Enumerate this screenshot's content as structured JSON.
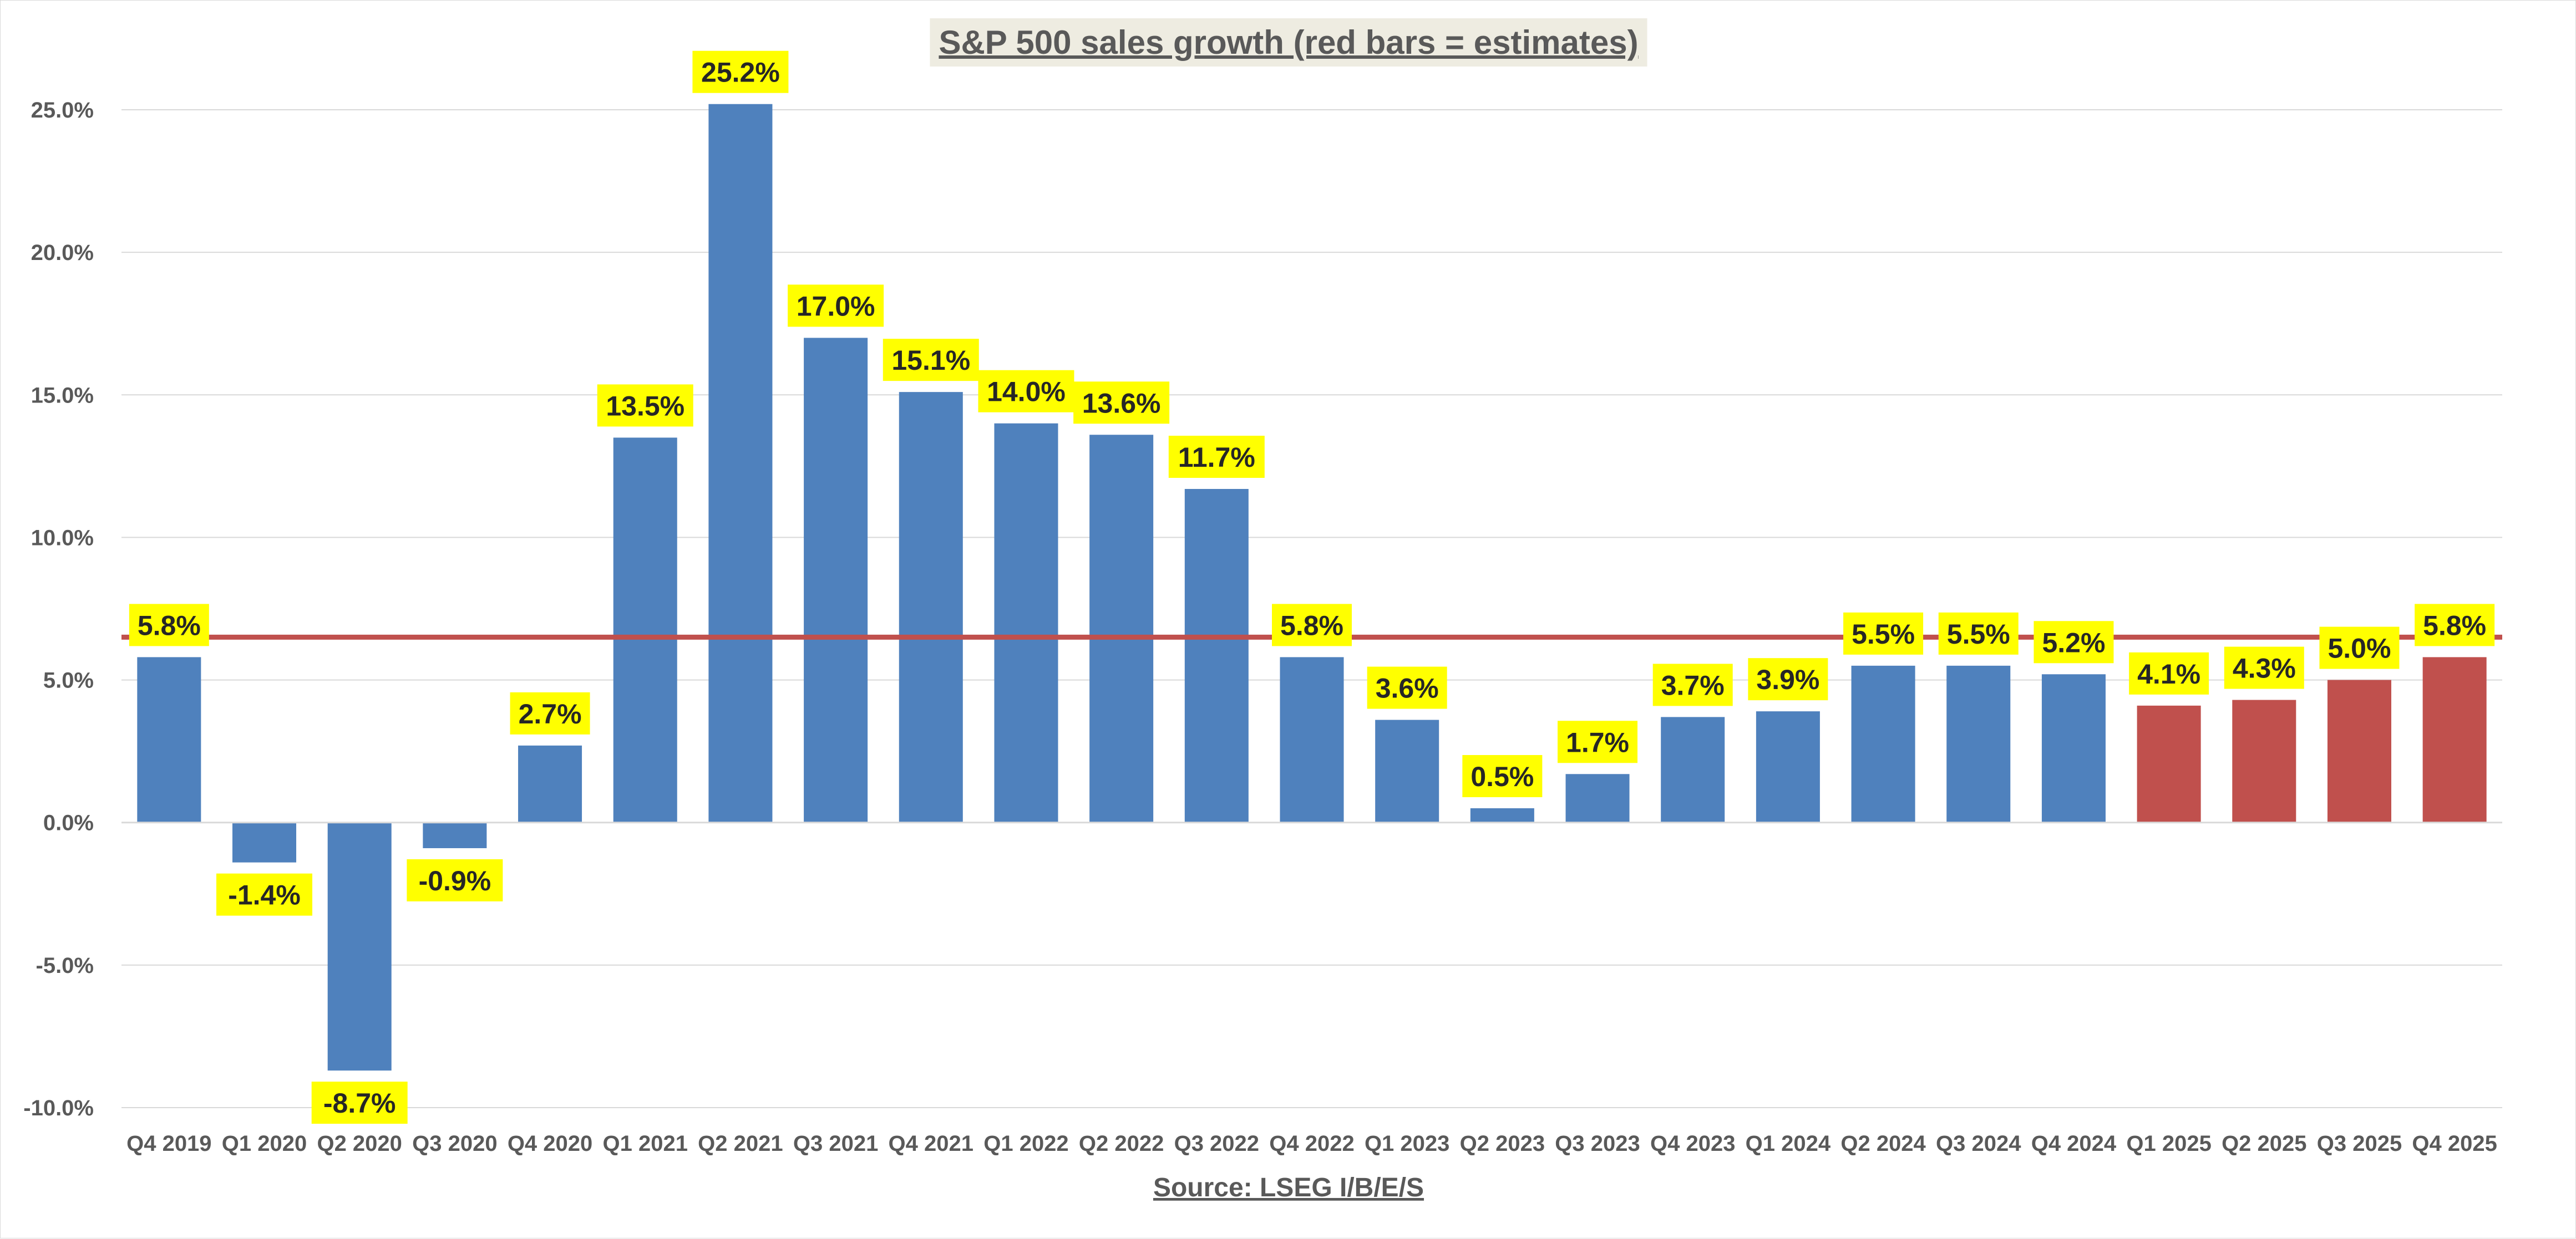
{
  "chart_data": {
    "type": "bar",
    "title": "S&P 500 sales growth (red bars = estimates)",
    "source": "Source: LSEG I/B/E/S",
    "categories": [
      "Q4 2019",
      "Q1 2020",
      "Q2 2020",
      "Q3 2020",
      "Q4 2020",
      "Q1 2021",
      "Q2 2021",
      "Q3 2021",
      "Q4 2021",
      "Q1 2022",
      "Q2 2022",
      "Q3 2022",
      "Q4 2022",
      "Q1 2023",
      "Q2 2023",
      "Q3 2023",
      "Q4 2023",
      "Q1 2024",
      "Q2 2024",
      "Q3 2024",
      "Q4 2024",
      "Q1 2025",
      "Q2 2025",
      "Q3 2025",
      "Q4 2025"
    ],
    "values": [
      5.8,
      -1.4,
      -8.7,
      -0.9,
      2.7,
      13.5,
      25.2,
      17.0,
      15.1,
      14.0,
      13.6,
      11.7,
      5.8,
      3.6,
      0.5,
      1.7,
      3.7,
      3.9,
      5.5,
      5.5,
      5.2,
      4.1,
      4.3,
      5.0,
      5.8
    ],
    "labels": [
      "5.8%",
      "-1.4%",
      "-8.7%",
      "-0.9%",
      "2.7%",
      "13.5%",
      "25.2%",
      "17.0%",
      "15.1%",
      "14.0%",
      "13.6%",
      "11.7%",
      "5.8%",
      "3.6%",
      "0.5%",
      "1.7%",
      "3.7%",
      "3.9%",
      "5.5%",
      "5.5%",
      "5.2%",
      "4.1%",
      "4.3%",
      "5.0%",
      "5.8%"
    ],
    "estimate": [
      false,
      false,
      false,
      false,
      false,
      false,
      false,
      false,
      false,
      false,
      false,
      false,
      false,
      false,
      false,
      false,
      false,
      false,
      false,
      false,
      false,
      true,
      true,
      true,
      true
    ],
    "reference_line": 6.5,
    "ylim": [
      -10,
      25
    ],
    "yticks": [
      -10,
      -5,
      0,
      5,
      10,
      15,
      20,
      25
    ],
    "ytick_labels": [
      "-10.0%",
      "-5.0%",
      "0.0%",
      "5.0%",
      "10.0%",
      "15.0%",
      "20.0%",
      "25.0%"
    ],
    "xlabel": "",
    "ylabel": "",
    "grid": true,
    "colors": {
      "actual": "#4F81BD",
      "estimate": "#C0504D",
      "reference_line": "#C0504D",
      "label_bg": "#FFFF00",
      "title_bg": "#EEECE1",
      "grid": "#D9D9D9"
    }
  }
}
